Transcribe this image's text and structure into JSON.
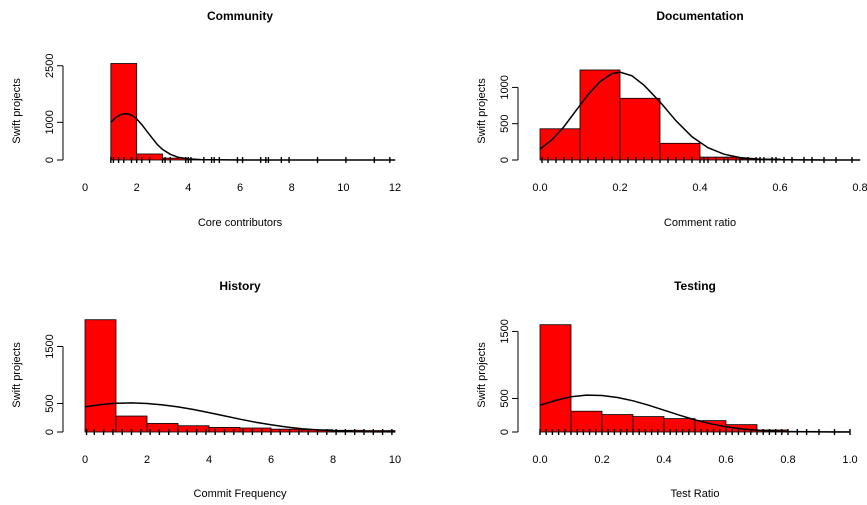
{
  "chart_data": [
    {
      "type": "bar",
      "title": "Community",
      "xlabel": "Core contributors",
      "ylabel": "Swift projects",
      "xlim": [
        0,
        12
      ],
      "ylim": [
        0,
        2600
      ],
      "x_ticks": [
        "0",
        "2",
        "4",
        "6",
        "8",
        "10",
        "12"
      ],
      "y_ticks": [
        "0",
        "1000",
        "2500"
      ],
      "bin_edges": [
        1,
        2,
        3,
        4,
        5,
        6,
        7,
        8,
        9,
        10,
        11,
        12
      ],
      "values": [
        2560,
        160,
        50,
        15,
        6,
        4,
        3,
        2,
        1,
        1,
        1
      ],
      "bar_color": "#ff0000",
      "density_curve": {
        "x": [
          1.0,
          1.2,
          1.4,
          1.6,
          1.8,
          2.0,
          2.2,
          2.4,
          2.6,
          2.8,
          3.0,
          3.3,
          3.6,
          4.0,
          4.5,
          5.0,
          6.0,
          8.0,
          12.0
        ],
        "y": [
          1000,
          1130,
          1210,
          1230,
          1195,
          1090,
          940,
          760,
          580,
          410,
          280,
          150,
          75,
          30,
          10,
          4,
          1,
          0,
          0
        ]
      },
      "rug_x": [
        1.0,
        1.1,
        1.3,
        1.5,
        1.8,
        2.0,
        2.2,
        2.5,
        3.0,
        3.1,
        3.3,
        3.9,
        4.0,
        4.1,
        4.6,
        4.9,
        5.0,
        5.2,
        5.9,
        6.1,
        6.8,
        7.0,
        7.1,
        7.6,
        7.9,
        9.0,
        10.1,
        11.2,
        11.8
      ]
    },
    {
      "type": "bar",
      "title": "Documentation",
      "xlabel": "Comment ratio",
      "ylabel": "Swift projects",
      "xlim": [
        0,
        0.8
      ],
      "ylim": [
        0,
        1350
      ],
      "x_ticks": [
        "0.0",
        "0.2",
        "0.4",
        "0.6",
        "0.8"
      ],
      "y_ticks": [
        "0",
        "500",
        "1000"
      ],
      "bin_edges": [
        0,
        0.1,
        0.2,
        0.3,
        0.4,
        0.5,
        0.6,
        0.7,
        0.8
      ],
      "values": [
        430,
        1240,
        850,
        230,
        40,
        15,
        5,
        2
      ],
      "bar_color": "#ff0000",
      "density_curve": {
        "x": [
          0.0,
          0.03,
          0.06,
          0.09,
          0.12,
          0.15,
          0.18,
          0.2,
          0.23,
          0.26,
          0.3,
          0.34,
          0.38,
          0.42,
          0.46,
          0.5,
          0.55,
          0.6,
          0.7,
          0.8
        ],
        "y": [
          150,
          280,
          460,
          680,
          900,
          1080,
          1190,
          1210,
          1160,
          1030,
          800,
          540,
          320,
          170,
          80,
          33,
          10,
          3,
          0,
          0
        ]
      },
      "rug_x": [
        0.005,
        0.02,
        0.04,
        0.06,
        0.08,
        0.1,
        0.12,
        0.14,
        0.16,
        0.18,
        0.2,
        0.22,
        0.24,
        0.26,
        0.28,
        0.3,
        0.32,
        0.34,
        0.36,
        0.38,
        0.4,
        0.41,
        0.42,
        0.44,
        0.46,
        0.47,
        0.49,
        0.5,
        0.52,
        0.54,
        0.55,
        0.56,
        0.58,
        0.59,
        0.61,
        0.63,
        0.66,
        0.68,
        0.71,
        0.74,
        0.78
      ]
    },
    {
      "type": "bar",
      "title": "History",
      "xlabel": "Commit Frequency",
      "ylabel": "Swift projects",
      "xlim": [
        0,
        10
      ],
      "ylim": [
        0,
        2000
      ],
      "x_ticks": [
        "0",
        "2",
        "4",
        "6",
        "8",
        "10"
      ],
      "y_ticks": [
        "0",
        "500",
        "1500"
      ],
      "bin_edges": [
        0,
        1,
        2,
        3,
        4,
        5,
        6,
        7,
        8,
        9,
        10
      ],
      "values": [
        1970,
        280,
        150,
        110,
        80,
        70,
        50,
        40,
        30,
        25
      ],
      "bar_color": "#ff0000",
      "density_curve": {
        "x": [
          0.0,
          0.5,
          1.0,
          1.5,
          2.0,
          2.5,
          3.0,
          3.5,
          4.0,
          4.5,
          5.0,
          5.5,
          6.0,
          6.5,
          7.0,
          7.5,
          8.0,
          9.0,
          10.0
        ],
        "y": [
          440,
          480,
          505,
          510,
          500,
          475,
          440,
          395,
          340,
          282,
          225,
          172,
          126,
          88,
          58,
          36,
          21,
          6,
          1
        ]
      },
      "rug_x": [
        0.05,
        0.3,
        0.6,
        0.9,
        1.2,
        1.5,
        1.8,
        2.1,
        2.4,
        2.7,
        3.0,
        3.3,
        3.6,
        3.9,
        4.2,
        4.5,
        4.8,
        5.1,
        5.4,
        5.7,
        6.0,
        6.3,
        6.6,
        6.9,
        7.2,
        7.5,
        7.8,
        8.1,
        8.4,
        8.7,
        9.0,
        9.3,
        9.6,
        9.9
      ]
    },
    {
      "type": "bar",
      "title": "Testing",
      "xlabel": "Test Ratio",
      "ylabel": "Swift projects",
      "xlim": [
        0,
        1.0
      ],
      "ylim": [
        0,
        1700
      ],
      "x_ticks": [
        "0.0",
        "0.2",
        "0.4",
        "0.6",
        "0.8",
        "1.0"
      ],
      "y_ticks": [
        "0",
        "500",
        "1500"
      ],
      "bin_edges": [
        0,
        0.1,
        0.2,
        0.3,
        0.4,
        0.5,
        0.6,
        0.7,
        0.8,
        0.9,
        1.0
      ],
      "values": [
        1600,
        310,
        260,
        230,
        200,
        170,
        110,
        30,
        10,
        5
      ],
      "bar_color": "#ff0000",
      "density_curve": {
        "x": [
          0.0,
          0.05,
          0.1,
          0.15,
          0.2,
          0.25,
          0.3,
          0.35,
          0.4,
          0.45,
          0.5,
          0.55,
          0.6,
          0.65,
          0.7,
          0.75,
          0.8,
          0.85,
          0.9,
          0.95,
          1.0
        ],
        "y": [
          400,
          470,
          525,
          550,
          545,
          515,
          465,
          400,
          325,
          250,
          180,
          122,
          77,
          46,
          25,
          13,
          6,
          3,
          1,
          0,
          0
        ]
      },
      "rug_x": [
        0.0,
        0.02,
        0.04,
        0.06,
        0.08,
        0.1,
        0.12,
        0.14,
        0.16,
        0.18,
        0.2,
        0.22,
        0.24,
        0.26,
        0.28,
        0.3,
        0.32,
        0.34,
        0.36,
        0.38,
        0.4,
        0.42,
        0.44,
        0.46,
        0.48,
        0.5,
        0.52,
        0.54,
        0.56,
        0.58,
        0.6,
        0.62,
        0.64,
        0.66,
        0.68,
        0.7,
        0.72,
        0.74,
        0.76,
        0.78,
        0.8,
        0.83,
        0.86,
        0.9,
        0.95,
        1.0
      ]
    }
  ]
}
